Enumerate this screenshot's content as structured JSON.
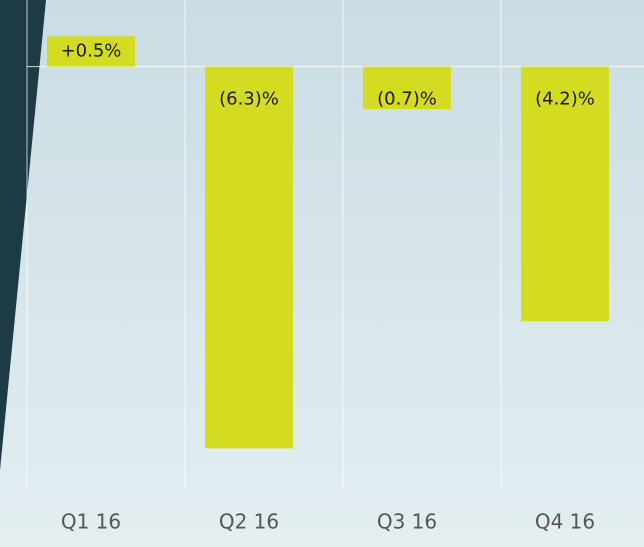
{
  "chart_data": {
    "type": "bar",
    "categories": [
      "Q1 16",
      "Q2 16",
      "Q3 16",
      "Q4 16"
    ],
    "values": [
      0.5,
      -6.3,
      -0.7,
      -4.2
    ],
    "value_labels": [
      "+0.5%",
      "(6.3)%",
      "(0.7)%",
      "(4.2)%"
    ],
    "color": "#d4dc22",
    "ylim": [
      -7.3,
      1.1
    ]
  }
}
